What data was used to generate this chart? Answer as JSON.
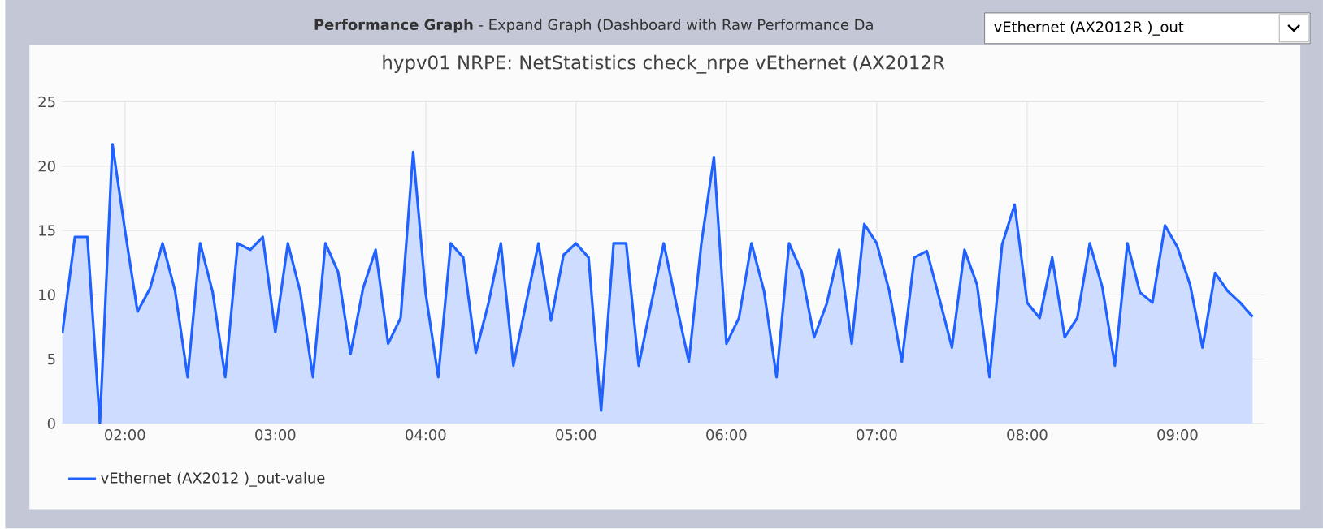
{
  "chart_data": {
    "type": "area",
    "title": "hypv01 NRPE: NetStatistics check_nrpe vEthernet (AX2012R",
    "annotations": [
      "**Performance Graph** - Expand Graph (Dashboard with Raw Performance Da",
      "vEthernet (AX2012R )_out"
    ],
    "x": [
      1.5833,
      1.6667,
      1.75,
      1.8333,
      1.9167,
      2,
      2.0833,
      2.1667,
      2.25,
      2.3333,
      2.4167,
      2.5,
      2.5833,
      2.6667,
      2.75,
      2.8333,
      2.9167,
      3,
      3.0833,
      3.1667,
      3.25,
      3.3333,
      3.4167,
      3.5,
      3.5833,
      3.6667,
      3.75,
      3.8333,
      3.9167,
      4,
      4.0833,
      4.1667,
      4.25,
      4.3333,
      4.4167,
      4.5,
      4.5833,
      4.6667,
      4.75,
      4.8333,
      4.9167,
      5,
      5.0833,
      5.1667,
      5.25,
      5.3333,
      5.4167,
      5.5,
      5.5833,
      5.6667,
      5.75,
      5.8333,
      5.9167,
      6,
      6.0833,
      6.1667,
      6.25,
      6.3333,
      6.4167,
      6.5,
      6.5833,
      6.6667,
      6.75,
      6.8333,
      6.9167,
      7,
      7.0833,
      7.1667,
      7.25,
      7.3333,
      7.4167,
      7.5,
      7.5833,
      7.6667,
      7.75,
      7.8333,
      7.9167,
      8,
      8.0833,
      8.1667,
      8.25,
      8.3333,
      8.4167,
      8.5,
      8.5833,
      8.6667,
      8.75,
      8.8333,
      8.9167,
      9,
      9.0833,
      9.1667,
      9.25,
      9.3333,
      9.4167,
      9.5
    ],
    "series": [
      {
        "name": "vEthernet (AX2012 )_out-value",
        "color": "#1f62ff",
        "values": [
          7.0,
          14.5,
          14.5,
          0,
          21.7,
          15,
          8.7,
          10.5,
          14.0,
          10.3,
          3.6,
          14.0,
          10.2,
          3.6,
          14.0,
          13.5,
          14.5,
          7.1,
          14.0,
          10.2,
          3.6,
          14.0,
          11.8,
          5.4,
          10.5,
          13.5,
          6.2,
          8.2,
          21.1,
          10.1,
          3.6,
          14.0,
          12.9,
          5.5,
          9.3,
          14.0,
          4.5,
          9.3,
          14.0,
          8.0,
          13.1,
          14.0,
          12.9,
          1.0,
          14.0,
          14.0,
          4.5,
          9.3,
          14.0,
          9.3,
          4.8,
          14.0,
          20.7,
          6.2,
          8.2,
          14.0,
          10.3,
          3.6,
          14.0,
          11.8,
          6.7,
          9.3,
          13.5,
          6.2,
          15.5,
          14.0,
          10.3,
          4.8,
          12.9,
          13.4,
          9.7,
          5.9,
          13.5,
          10.8,
          3.6,
          13.9,
          17,
          9.4,
          8.2,
          12.9,
          6.7,
          8.2,
          14.0,
          10.6,
          4.5,
          14.0,
          10.2,
          9.4,
          15.4,
          13.7,
          10.8,
          5.9,
          11.7,
          10.3,
          9.4,
          8.3
        ]
      }
    ],
    "xlim": [
      1.58,
      9.58
    ],
    "xticks": [
      {
        "value": 2,
        "label": "02:00"
      },
      {
        "value": 3,
        "label": "03:00"
      },
      {
        "value": 4,
        "label": "04:00"
      },
      {
        "value": 5,
        "label": "05:00"
      },
      {
        "value": 6,
        "label": "06:00"
      },
      {
        "value": 7,
        "label": "07:00"
      },
      {
        "value": 8,
        "label": "08:00"
      },
      {
        "value": 9,
        "label": "09:00"
      }
    ],
    "ylim": [
      0,
      25
    ],
    "yticks": [
      0,
      5,
      10,
      15,
      20,
      25
    ],
    "grid": true,
    "legend": "bottom left"
  }
}
